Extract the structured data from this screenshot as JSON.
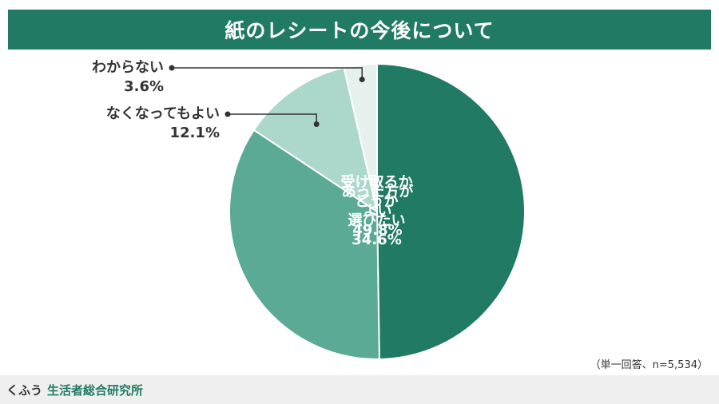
{
  "chart_data": {
    "type": "pie",
    "title": "紙のレシートの今後について",
    "categories": [
      "あった方が\nよい",
      "受け取るか\nどうか\n選びたい",
      "なくなってもよい",
      "わからない"
    ],
    "values": [
      49.8,
      34.6,
      12.1,
      3.6
    ],
    "value_labels": [
      "49.8%",
      "34.6%",
      "12.1%",
      "3.6%"
    ],
    "colors": [
      "#217a63",
      "#5aaa96",
      "#acd8cb",
      "#e6f1ee"
    ],
    "note": "（単一回答、n=5,534）"
  },
  "footer": {
    "brand": "くふう",
    "org": "生活者総合研究所"
  }
}
